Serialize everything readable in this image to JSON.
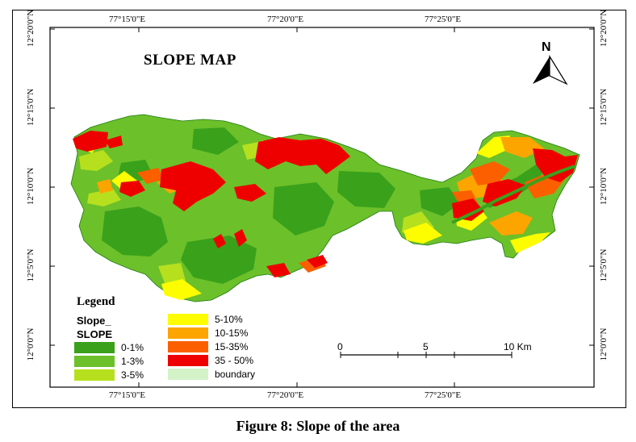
{
  "map": {
    "title": "SLOPE MAP",
    "north_label": "N",
    "top_coords": [
      "77°15'0\"E",
      "77°20'0\"E",
      "77°25'0\"E"
    ],
    "bottom_coords": [
      "77°15'0\"E",
      "77°20'0\"E",
      "77°25'0\"E"
    ],
    "left_coords": [
      "12°20'0\"N",
      "12°15'0\"N",
      "12°10'0\"N",
      "12°5'0\"N",
      "12°0'0\"N"
    ],
    "right_coords": [
      "12°20'0\"N",
      "12°15'0\"N",
      "12°10'0\"N",
      "12°5'0\"N",
      "12°0'0\"N"
    ]
  },
  "legend": {
    "title": "Legend",
    "subtitle1": "Slope_",
    "subtitle2": "SLOPE",
    "items": [
      {
        "label": "0-1%",
        "color": "#3aa11b"
      },
      {
        "label": "1-3%",
        "color": "#6cc02a"
      },
      {
        "label": "3-5%",
        "color": "#b6e01e"
      },
      {
        "label": "5-10%",
        "color": "#fdfd00"
      },
      {
        "label": "10-15%",
        "color": "#fca400"
      },
      {
        "label": "15-35%",
        "color": "#fb5f00"
      },
      {
        "label": "35 - 50%",
        "color": "#ee0000"
      },
      {
        "label": "boundary",
        "color": "#d4f2c8"
      }
    ]
  },
  "scale": {
    "labels": [
      "0",
      "5",
      "10 Km"
    ]
  },
  "caption": "Figure 8: Slope of the area"
}
